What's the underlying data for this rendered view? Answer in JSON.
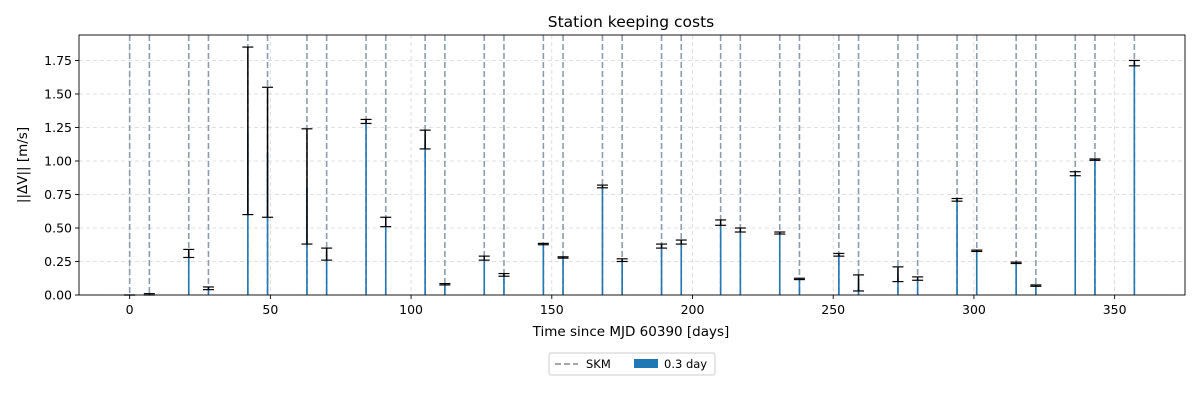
{
  "chart_data": {
    "type": "bar",
    "title": "Station keeping costs",
    "xlabel": "Time since MJD 60390 [days]",
    "ylabel": "||ΔV|| [m/s]",
    "xlim": [
      -18,
      375
    ],
    "ylim": [
      0,
      1.94
    ],
    "x_ticks": [
      0,
      50,
      100,
      150,
      200,
      250,
      300,
      350
    ],
    "y_ticks": [
      0.0,
      0.25,
      0.5,
      0.75,
      1.0,
      1.25,
      1.5,
      1.75
    ],
    "x_tick_labels": [
      "0",
      "50",
      "100",
      "150",
      "200",
      "250",
      "300",
      "350"
    ],
    "y_tick_labels": [
      "0.00",
      "0.25",
      "0.50",
      "0.75",
      "1.00",
      "1.25",
      "1.50",
      "1.75"
    ],
    "grid": true,
    "legend_position": "bottom-center",
    "skm_times": [
      0,
      7,
      21,
      28,
      42,
      49,
      63,
      70,
      84,
      91,
      105,
      112,
      126,
      133,
      147,
      154,
      168,
      175,
      189,
      196,
      210,
      217,
      231,
      238,
      252,
      259,
      273,
      280,
      294,
      301,
      315,
      322,
      336,
      343,
      357
    ],
    "series": [
      {
        "name": "0.3 day",
        "color": "#1f77b4",
        "x": [
          0,
          7,
          21,
          28,
          42,
          49,
          63,
          70,
          84,
          91,
          105,
          112,
          126,
          133,
          147,
          154,
          168,
          175,
          189,
          196,
          210,
          217,
          231,
          238,
          252,
          259,
          273,
          280,
          294,
          301,
          315,
          322,
          336,
          343,
          357
        ],
        "values": [
          0.0,
          0.005,
          0.31,
          0.05,
          1.22,
          1.06,
          0.81,
          0.3,
          1.29,
          0.54,
          1.16,
          0.08,
          0.27,
          0.15,
          0.38,
          0.28,
          0.81,
          0.26,
          0.36,
          0.39,
          0.54,
          0.48,
          0.46,
          0.12,
          0.3,
          0.09,
          0.155,
          0.12,
          0.71,
          0.33,
          0.24,
          0.07,
          0.9,
          1.01,
          1.73
        ],
        "err_low": [
          0.0,
          0.0,
          0.28,
          0.04,
          0.6,
          0.58,
          0.38,
          0.26,
          1.28,
          0.51,
          1.09,
          0.075,
          0.26,
          0.14,
          0.375,
          0.275,
          0.8,
          0.25,
          0.35,
          0.38,
          0.52,
          0.47,
          0.455,
          0.115,
          0.29,
          0.03,
          0.1,
          0.11,
          0.7,
          0.325,
          0.235,
          0.065,
          0.89,
          1.005,
          1.71
        ],
        "err_high": [
          0.0,
          0.01,
          0.34,
          0.06,
          1.85,
          1.55,
          1.24,
          0.35,
          1.31,
          0.58,
          1.23,
          0.085,
          0.29,
          0.16,
          0.385,
          0.285,
          0.82,
          0.27,
          0.38,
          0.41,
          0.56,
          0.5,
          0.47,
          0.125,
          0.31,
          0.15,
          0.21,
          0.135,
          0.72,
          0.335,
          0.245,
          0.075,
          0.92,
          1.015,
          1.75
        ]
      }
    ],
    "legend": {
      "entries": [
        {
          "label": "SKM",
          "style": "dashed-line",
          "color": "#8a8a8a"
        },
        {
          "label": "0.3 day",
          "style": "patch",
          "color": "#1f77b4"
        }
      ]
    }
  }
}
